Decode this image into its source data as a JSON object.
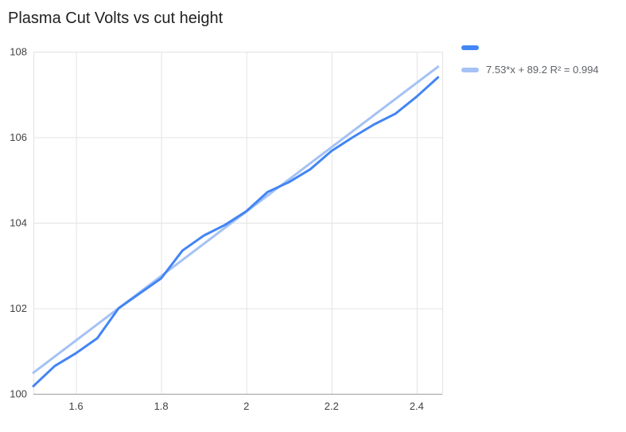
{
  "chart_data": {
    "type": "line",
    "title": "Plasma Cut Volts vs cut height",
    "xlabel": "",
    "ylabel": "",
    "xlim": [
      1.5,
      2.46
    ],
    "ylim": [
      100,
      108
    ],
    "x_ticks": [
      1.6,
      1.8,
      2,
      2.2,
      2.4
    ],
    "x_tick_labels": [
      "1.6",
      "1.8",
      "2",
      "2.2",
      "2.4"
    ],
    "y_ticks": [
      100,
      102,
      104,
      106,
      108
    ],
    "y_tick_labels": [
      "100",
      "102",
      "104",
      "106",
      "108"
    ],
    "grid": true,
    "grid_color": "#e3e3e3",
    "axis_color": "#9e9e9e",
    "legend_position": "right",
    "x": [
      1.5,
      1.55,
      1.6,
      1.65,
      1.7,
      1.75,
      1.8,
      1.85,
      1.9,
      1.95,
      2.0,
      2.05,
      2.1,
      2.15,
      2.2,
      2.25,
      2.3,
      2.35,
      2.4,
      2.45
    ],
    "series": [
      {
        "name": "",
        "color": "#4285f4",
        "values": [
          100.18,
          100.65,
          100.95,
          101.3,
          102.0,
          102.35,
          102.7,
          103.35,
          103.7,
          103.95,
          104.27,
          104.72,
          104.95,
          105.25,
          105.68,
          106.0,
          106.3,
          106.55,
          106.95,
          107.4
        ]
      }
    ],
    "trendline": {
      "label": "7.53*x + 89.2 R² = 0.994",
      "slope": 7.53,
      "intercept": 89.2,
      "r_squared": 0.994,
      "color": "#a4c2f4",
      "x_range": [
        1.5,
        2.45
      ]
    }
  },
  "colors": {
    "series_blue": "#4285f4",
    "trendline_light_blue": "#a4c2f4",
    "gridline_gray": "#e3e3e3",
    "axis_gray": "#9e9e9e",
    "title_text": "#212121",
    "tick_text": "#424242",
    "legend_text": "#5f6368"
  }
}
